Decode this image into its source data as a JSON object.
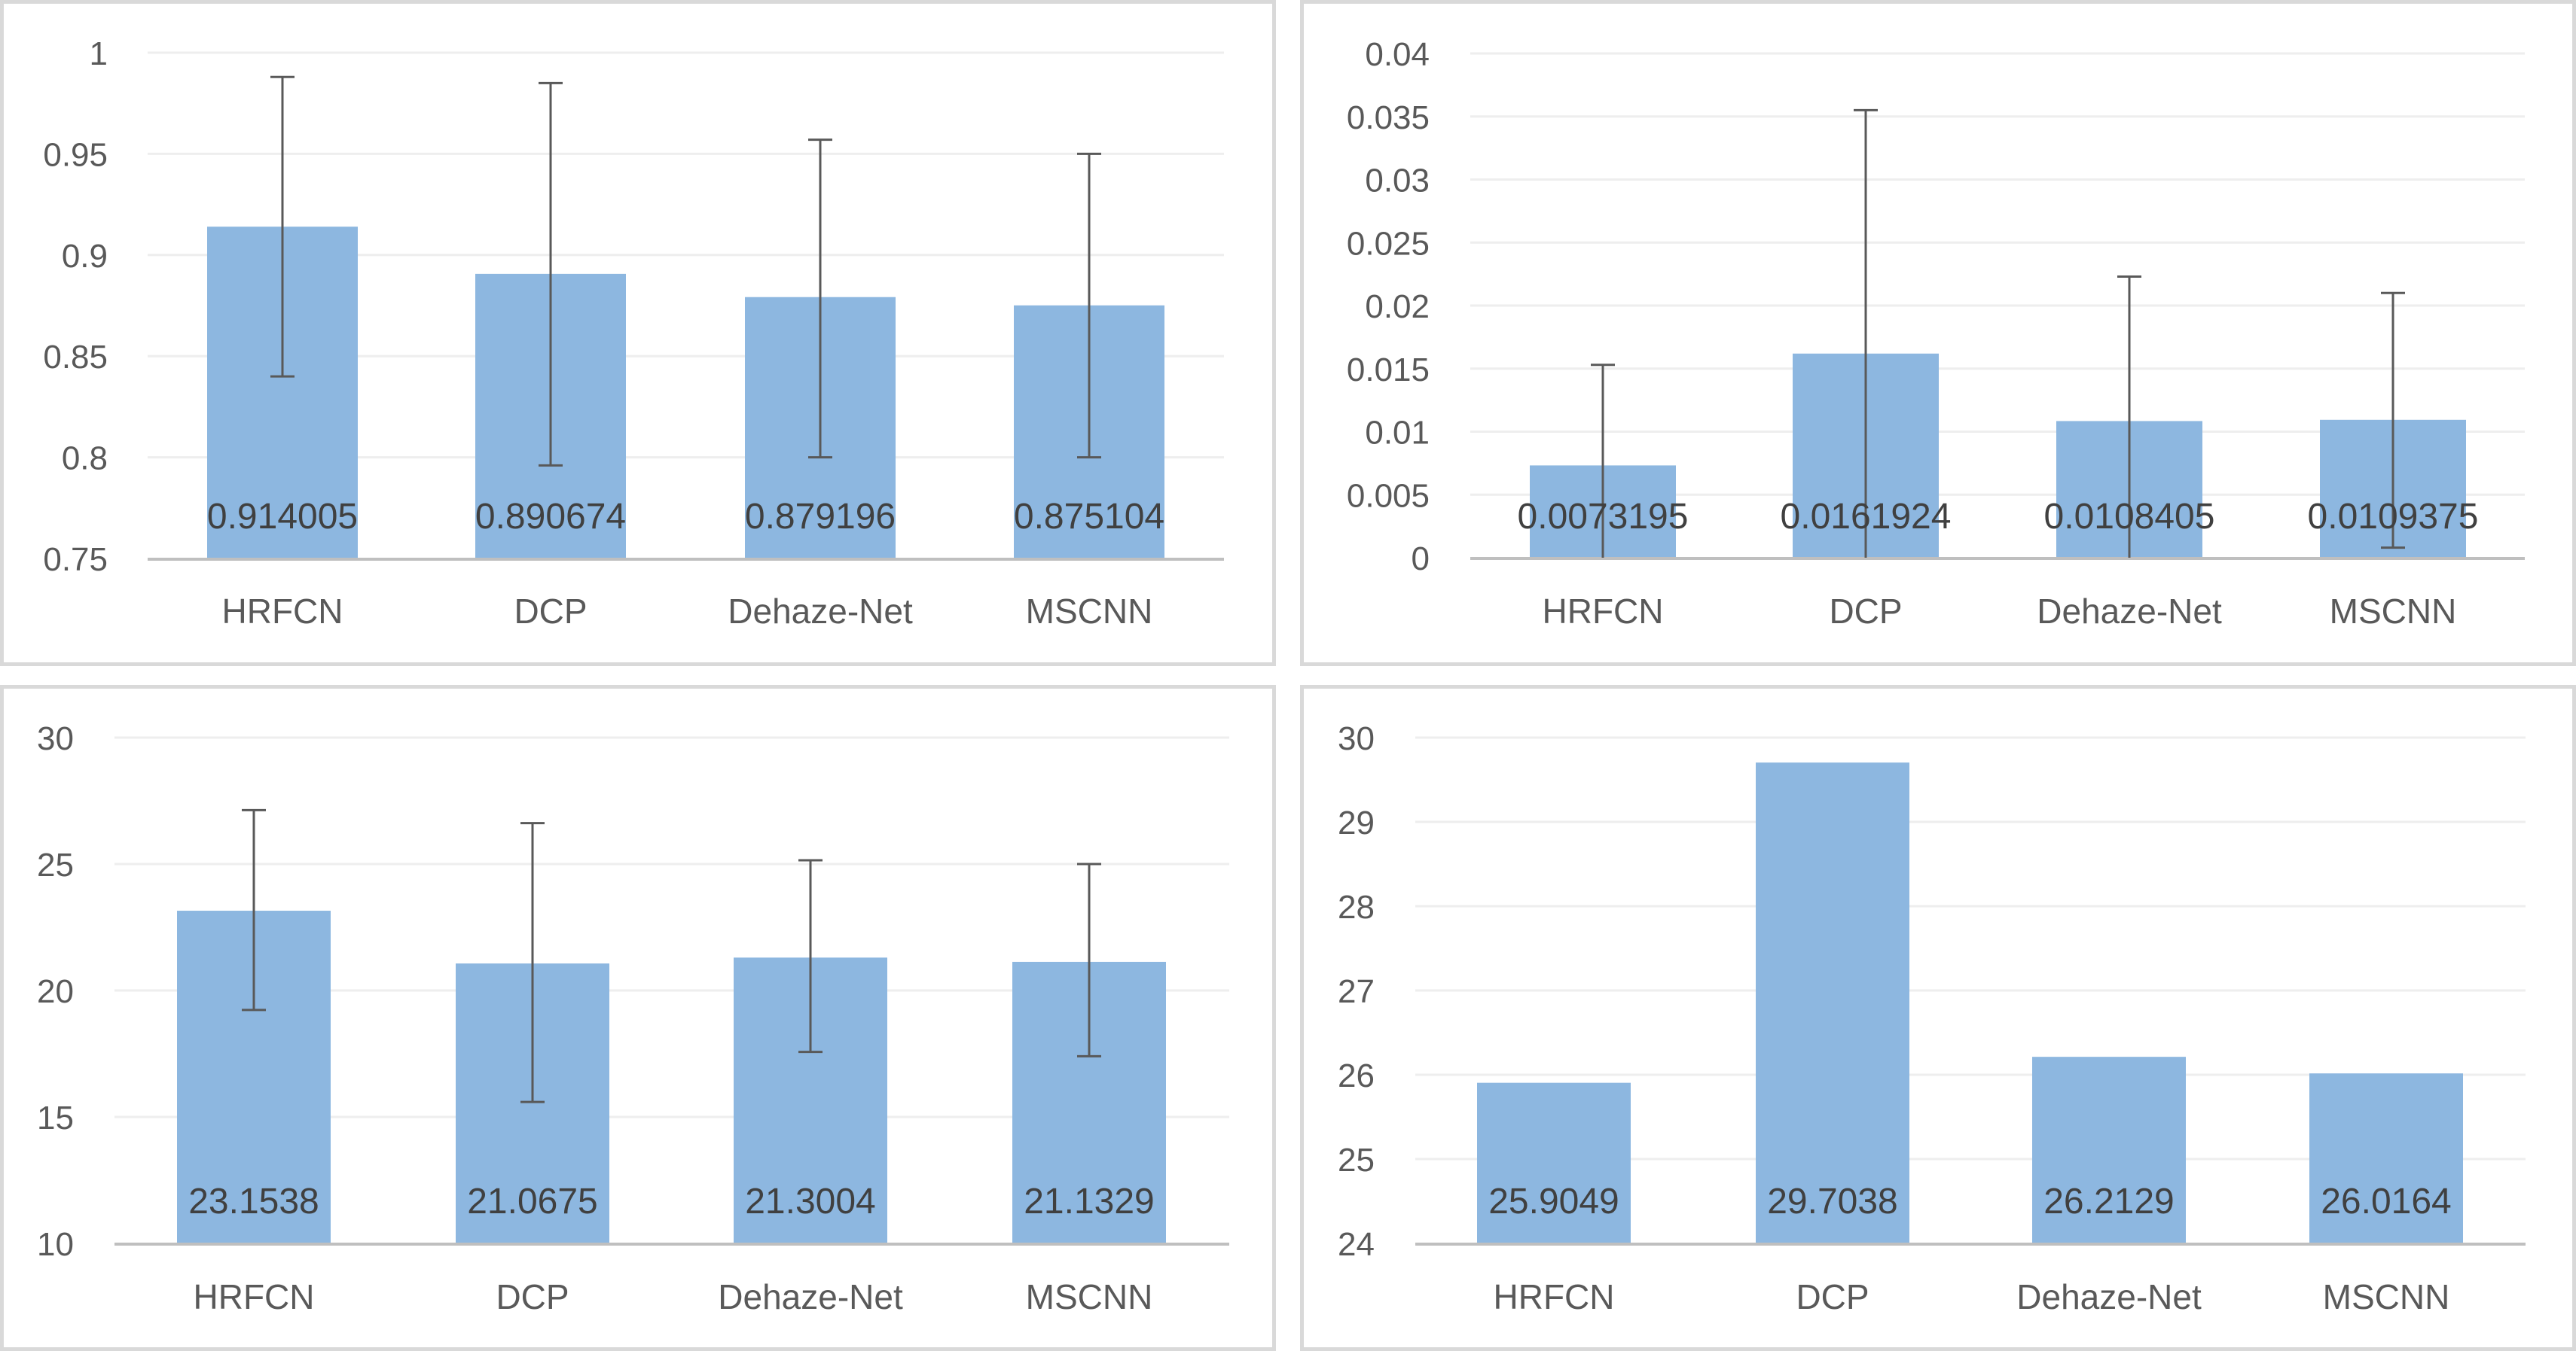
{
  "colors": {
    "bar": "#8db7e0",
    "errorbar": "#595959",
    "grid": "#eeeeee",
    "axis": "#bfbfbf",
    "text": "#595959",
    "panel_border": "#d9d9d9"
  },
  "chart_data": [
    {
      "type": "bar",
      "title": "",
      "xlabel": "",
      "ylabel": "",
      "categories": [
        "HRFCN",
        "DCP",
        "Dehaze-Net",
        "MSCNN"
      ],
      "values": [
        0.914005,
        0.890674,
        0.879196,
        0.875104
      ],
      "value_labels": [
        "0.914005",
        "0.890674",
        "0.879196",
        "0.875104"
      ],
      "error_bars": {
        "upper": [
          0.988,
          0.985,
          0.957,
          0.95
        ],
        "lower": [
          0.84,
          0.796,
          0.8,
          0.8
        ]
      },
      "ylim": [
        0.75,
        1
      ],
      "yticks": [
        0.75,
        0.8,
        0.85,
        0.9,
        0.95,
        1
      ],
      "ytick_labels": [
        "0.75",
        "0.8",
        "0.85",
        "0.9",
        "0.95",
        "1"
      ],
      "grid": true,
      "legend": "none",
      "position": "top-left"
    },
    {
      "type": "bar",
      "title": "",
      "xlabel": "",
      "ylabel": "",
      "categories": [
        "HRFCN",
        "DCP",
        "Dehaze-Net",
        "MSCNN"
      ],
      "values": [
        0.0073195,
        0.0161924,
        0.0108405,
        0.0109375
      ],
      "value_labels": [
        "0.0073195",
        "0.0161924",
        "0.0108405",
        "0.0109375"
      ],
      "error_bars": {
        "upper": [
          0.0153,
          0.0355,
          0.0223,
          0.021
        ],
        "lower": [
          0,
          0,
          0,
          0.0008
        ]
      },
      "ylim": [
        0,
        0.04
      ],
      "yticks": [
        0,
        0.005,
        0.01,
        0.015,
        0.02,
        0.025,
        0.03,
        0.035,
        0.04
      ],
      "ytick_labels": [
        "0",
        "0.005",
        "0.01",
        "0.015",
        "0.02",
        "0.025",
        "0.03",
        "0.035",
        "0.04"
      ],
      "grid": true,
      "legend": "none",
      "position": "top-right"
    },
    {
      "type": "bar",
      "title": "",
      "xlabel": "",
      "ylabel": "",
      "categories": [
        "HRFCN",
        "DCP",
        "Dehaze-Net",
        "MSCNN"
      ],
      "values": [
        23.1538,
        21.0675,
        21.3004,
        21.1329
      ],
      "value_labels": [
        "23.1538",
        "21.0675",
        "21.3004",
        "21.1329"
      ],
      "error_bars": {
        "upper": [
          27.13,
          26.62,
          25.15,
          25.0
        ],
        "lower": [
          19.23,
          15.59,
          17.57,
          17.4
        ]
      },
      "ylim": [
        10,
        30
      ],
      "yticks": [
        10,
        15,
        20,
        25,
        30
      ],
      "ytick_labels": [
        "10",
        "15",
        "20",
        "25",
        "30"
      ],
      "grid": true,
      "legend": "none",
      "position": "bottom-left"
    },
    {
      "type": "bar",
      "title": "",
      "xlabel": "",
      "ylabel": "",
      "categories": [
        "HRFCN",
        "DCP",
        "Dehaze-Net",
        "MSCNN"
      ],
      "values": [
        25.9049,
        29.7038,
        26.2129,
        26.0164
      ],
      "value_labels": [
        "25.9049",
        "29.7038",
        "26.2129",
        "26.0164"
      ],
      "error_bars": null,
      "ylim": [
        24,
        30
      ],
      "yticks": [
        24,
        25,
        26,
        27,
        28,
        29,
        30
      ],
      "ytick_labels": [
        "24",
        "25",
        "26",
        "27",
        "28",
        "29",
        "30"
      ],
      "grid": true,
      "legend": "none",
      "position": "bottom-right"
    }
  ]
}
